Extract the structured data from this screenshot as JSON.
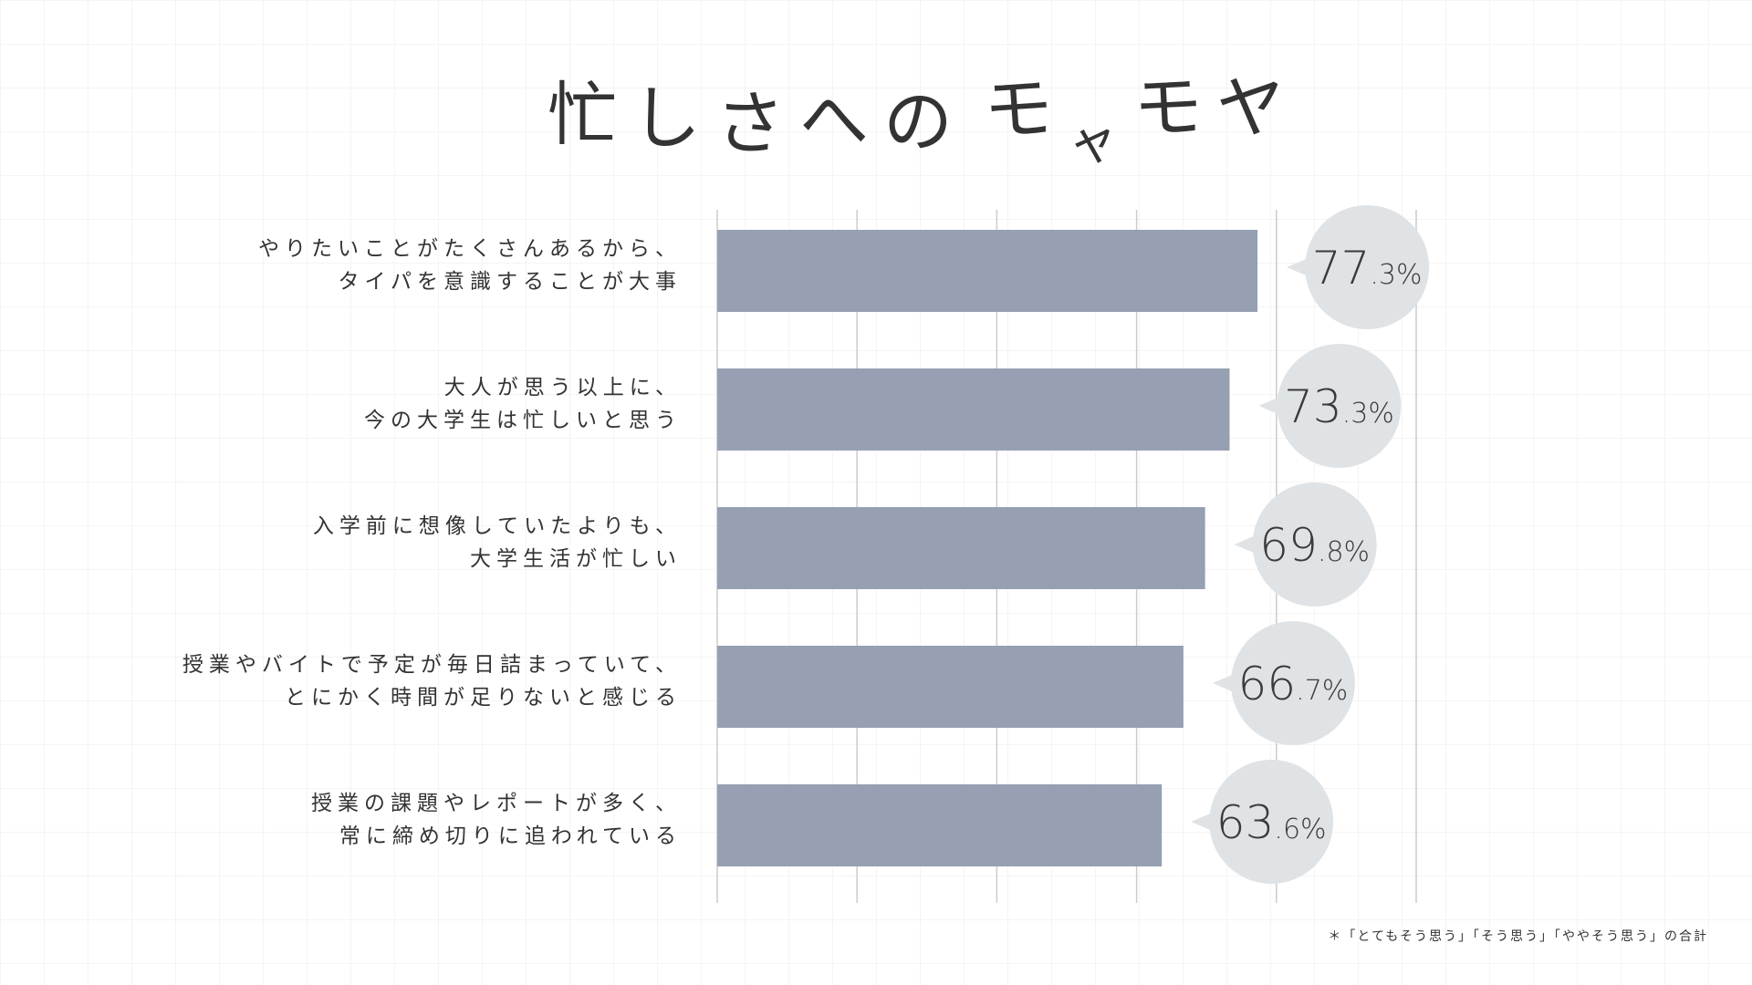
{
  "title": "忙しさへのモヤモヤ",
  "footnote": "＊「とてもそう思う」「そう思う」「ややそう思う」の合計",
  "colors": {
    "bar": "#96a0b2",
    "bubble": "#dfe3e6",
    "grid": "#cccccc",
    "text": "#333333"
  },
  "chart_data": {
    "type": "bar",
    "orientation": "horizontal",
    "title": "忙しさへのモヤモヤ",
    "categories": [
      [
        "やりたいことがたくさんあるから、",
        "タイパを意識することが大事"
      ],
      [
        "大人が思う以上に、",
        "今の大学生は忙しいと思う"
      ],
      [
        "入学前に想像していたよりも、",
        "大学生活が忙しい"
      ],
      [
        "授業やバイトで予定が毎日詰まっていて、",
        "とにかく時間が足りないと感じる"
      ],
      [
        "授業の課題やレポートが多く、",
        "常に締め切りに追われている"
      ]
    ],
    "values": [
      77.3,
      73.3,
      69.8,
      66.7,
      63.6
    ],
    "value_labels": [
      {
        "int": "77",
        "dec": ".3%"
      },
      {
        "int": "73",
        "dec": ".3%"
      },
      {
        "int": "69",
        "dec": ".8%"
      },
      {
        "int": "66",
        "dec": ".7%"
      },
      {
        "int": "63",
        "dec": ".6%"
      }
    ],
    "xlim": [
      0,
      100
    ],
    "grid": true,
    "grid_step": 20
  }
}
